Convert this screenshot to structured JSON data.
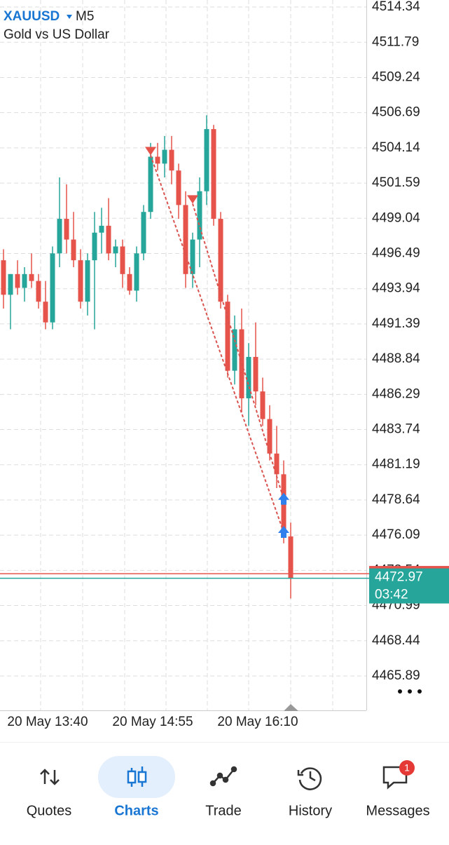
{
  "header": {
    "symbol": "XAUUSD",
    "timeframe": "M5",
    "description": "Gold vs US Dollar"
  },
  "chart_data": {
    "type": "candlestick",
    "categories": [
      null,
      null,
      null,
      null,
      null,
      null,
      "20 May 13:40",
      null,
      null,
      null,
      null,
      null,
      null,
      null,
      null,
      null,
      null,
      null,
      null,
      null,
      null,
      "20 May 14:55",
      null,
      null,
      null,
      null,
      null,
      null,
      null,
      null,
      null,
      null,
      null,
      null,
      null,
      null,
      "20 May 16:10",
      null,
      null,
      null,
      null,
      null
    ],
    "open": [
      4496.0,
      4493.5,
      4495.0,
      4494.0,
      4495.0,
      4494.5,
      4493.0,
      4491.5,
      4496.5,
      4499.0,
      4497.5,
      4496.0,
      4493.0,
      4496.0,
      4498.0,
      4498.5,
      4496.5,
      4497.0,
      4495.0,
      4493.8,
      4496.5,
      4499.5,
      4503.5,
      4503.0,
      4504.0,
      4502.5,
      4500.0,
      4495.0,
      4497.5,
      4501.0,
      4505.5,
      4499.0,
      4493.0,
      4488.0,
      4491.0,
      4486.0,
      4489.0,
      4486.5,
      4484.5,
      4482.0,
      4480.5,
      4476.0
    ],
    "high": [
      4496.8,
      4495.0,
      4496.0,
      4495.5,
      4496.5,
      4495.0,
      4494.5,
      4497.0,
      4502.0,
      4501.5,
      4499.5,
      4496.8,
      4496.5,
      4499.5,
      4499.8,
      4500.5,
      4497.5,
      4497.5,
      4495.5,
      4497.0,
      4500.0,
      4504.5,
      4504.5,
      4505.0,
      4505.0,
      4503.0,
      4501.0,
      4498.0,
      4502.0,
      4506.5,
      4505.8,
      4499.5,
      4493.5,
      4492.0,
      4492.5,
      4490.0,
      4491.5,
      4487.5,
      4485.5,
      4484.0,
      4481.5,
      4477.0
    ],
    "low": [
      4492.5,
      4491.0,
      4493.5,
      4493.0,
      4494.0,
      4492.5,
      4491.0,
      4491.0,
      4495.5,
      4496.5,
      4495.5,
      4492.5,
      4492.0,
      4491.0,
      4496.5,
      4496.0,
      4495.5,
      4494.0,
      4493.5,
      4493.0,
      4496.0,
      4499.0,
      4502.5,
      4502.0,
      4501.5,
      4499.0,
      4494.0,
      4494.0,
      4495.5,
      4500.0,
      4498.5,
      4492.5,
      4487.5,
      4487.0,
      4485.0,
      4484.0,
      4485.5,
      4484.0,
      4481.5,
      4479.5,
      4475.5,
      4471.5
    ],
    "close": [
      4493.5,
      4495.0,
      4494.0,
      4495.0,
      4494.5,
      4493.0,
      4491.5,
      4496.5,
      4499.0,
      4497.5,
      4496.0,
      4493.0,
      4496.0,
      4498.0,
      4498.5,
      4496.5,
      4497.0,
      4495.0,
      4493.8,
      4496.5,
      4499.5,
      4503.5,
      4503.0,
      4504.0,
      4502.5,
      4500.0,
      4495.0,
      4497.5,
      4501.0,
      4505.5,
      4499.0,
      4493.0,
      4488.0,
      4491.0,
      4486.0,
      4489.0,
      4486.5,
      4484.5,
      4482.0,
      4480.5,
      4476.0,
      4472.97
    ],
    "up_color": "#26a69a",
    "down_color": "#e5534b",
    "ylim": [
      4463.4,
      4514.85
    ],
    "yticks": [
      4514.34,
      4511.79,
      4509.24,
      4506.69,
      4504.14,
      4501.59,
      4499.04,
      4496.49,
      4493.94,
      4491.39,
      4488.84,
      4486.29,
      4483.74,
      4481.19,
      4478.64,
      4476.09,
      4473.54,
      4470.99,
      4468.44,
      4465.89
    ],
    "grid": true,
    "bid": 4472.97,
    "ask": 4473.3,
    "countdown": "03:42",
    "trades": [
      {
        "entry_index": 21,
        "entry": 4503.6,
        "exit_index": 40,
        "exit": 4476.3
      },
      {
        "entry_index": 27,
        "entry": 4500.1,
        "exit_index": 40,
        "exit": 4478.7
      }
    ]
  },
  "nav": {
    "items": [
      "Quotes",
      "Charts",
      "Trade",
      "History",
      "Messages"
    ],
    "badge": 1
  }
}
